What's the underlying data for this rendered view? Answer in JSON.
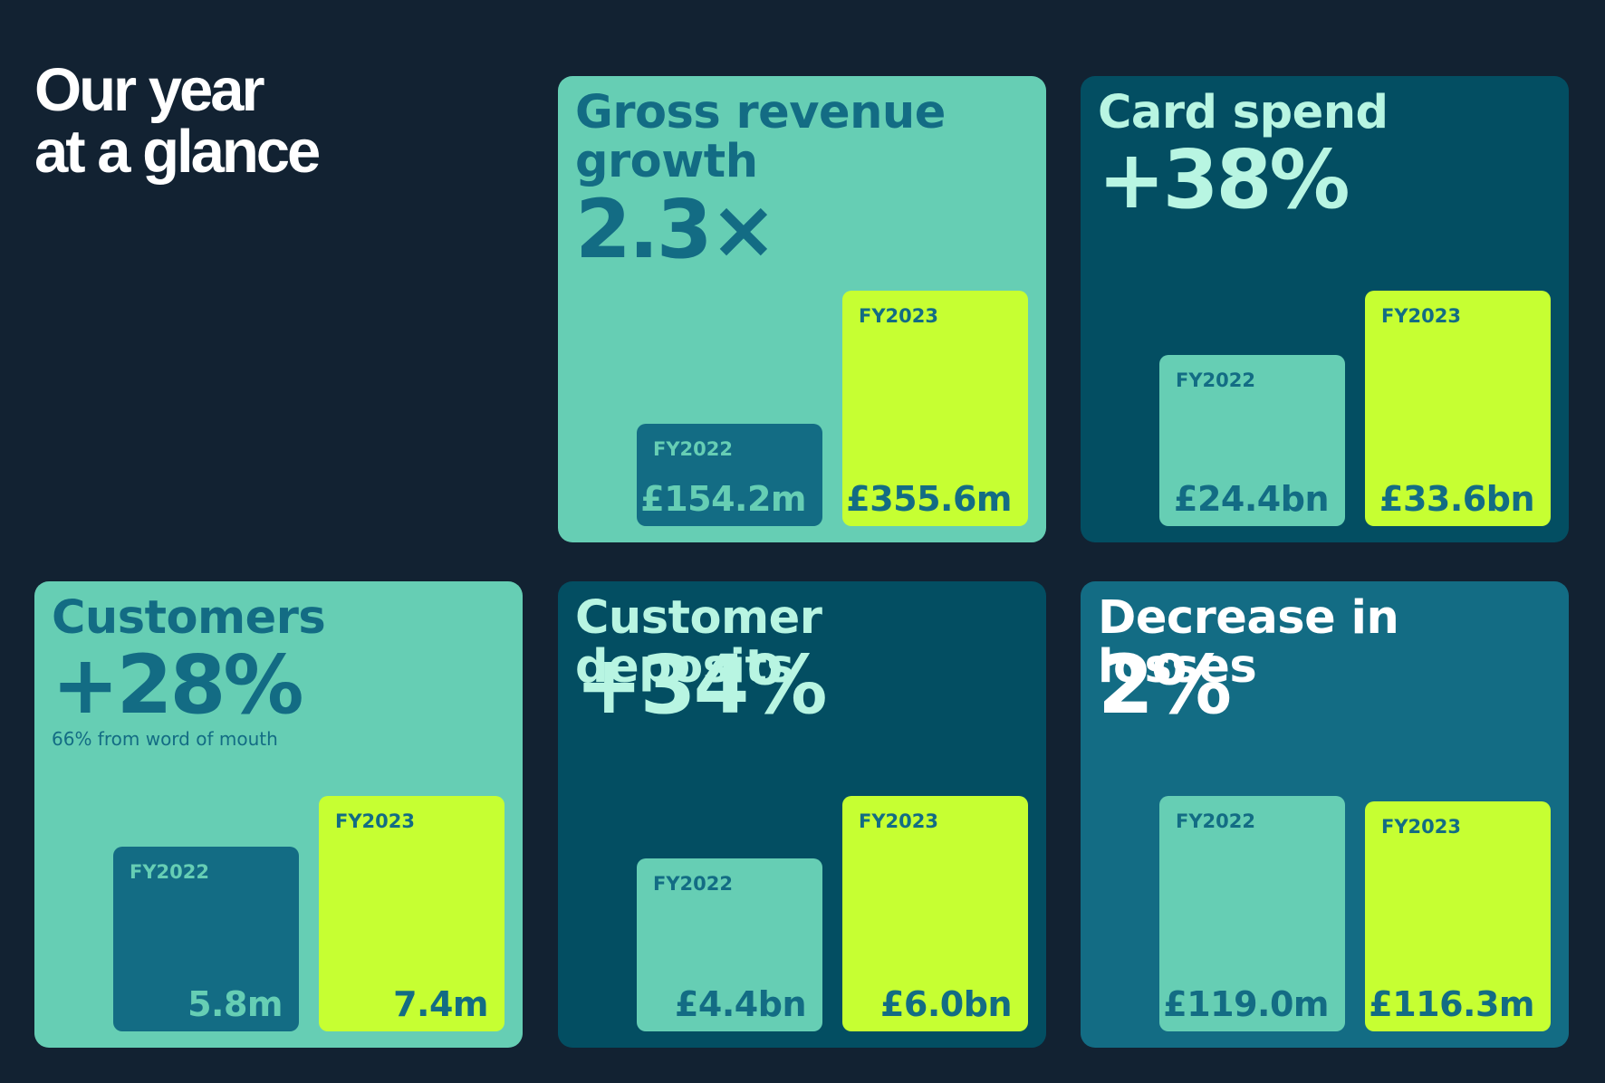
{
  "page": {
    "title_lines": [
      "Our year",
      "at a glance"
    ]
  },
  "colors": {
    "background": "#122232",
    "mint": "#66ceb4",
    "deep_teal": "#034e62",
    "mid_teal": "#136c84",
    "lime": "#c6ff32",
    "white": "#ffffff",
    "light_mint": "#b8f5e2",
    "dark_teal_text": "#1b6a80"
  },
  "chart_data": [
    {
      "type": "bar",
      "title": "Gross revenue growth",
      "headline": "2.3×",
      "note": "",
      "categories": [
        "FY2022",
        "FY2023"
      ],
      "values": [
        154.2,
        355.6
      ],
      "value_labels": [
        "£154.2m",
        "£355.6m"
      ],
      "unit": "£m",
      "card_color": "#66ceb4",
      "text_color": "#136c84",
      "bar_colors": [
        "#136c84",
        "#c6ff32"
      ],
      "bar_text_colors": [
        "#66ceb4",
        "#136c84"
      ]
    },
    {
      "type": "bar",
      "title": "Card spend",
      "headline": "+38%",
      "note": "",
      "categories": [
        "FY2022",
        "FY2023"
      ],
      "values": [
        24.4,
        33.6
      ],
      "value_labels": [
        "£24.4bn",
        "£33.6bn"
      ],
      "unit": "£bn",
      "card_color": "#034e62",
      "text_color": "#b8f5e2",
      "bar_colors": [
        "#66ceb4",
        "#c6ff32"
      ],
      "bar_text_colors": [
        "#136c84",
        "#136c84"
      ]
    },
    {
      "type": "bar",
      "title": "Customers",
      "headline": "+28%",
      "note": "66% from word of mouth",
      "categories": [
        "FY2022",
        "FY2023"
      ],
      "values": [
        5.8,
        7.4
      ],
      "value_labels": [
        "5.8m",
        "7.4m"
      ],
      "unit": "m",
      "card_color": "#66ceb4",
      "text_color": "#136c84",
      "bar_colors": [
        "#136c84",
        "#c6ff32"
      ],
      "bar_text_colors": [
        "#66ceb4",
        "#136c84"
      ]
    },
    {
      "type": "bar",
      "title": "Customer deposits",
      "headline": "+34%",
      "note": "",
      "categories": [
        "FY2022",
        "FY2023"
      ],
      "values": [
        4.4,
        6.0
      ],
      "value_labels": [
        "£4.4bn",
        "£6.0bn"
      ],
      "unit": "£bn",
      "card_color": "#034e62",
      "text_color": "#b8f5e2",
      "bar_colors": [
        "#66ceb4",
        "#c6ff32"
      ],
      "bar_text_colors": [
        "#136c84",
        "#136c84"
      ]
    },
    {
      "type": "bar",
      "title": "Decrease in losses",
      "headline": "2%",
      "note": "",
      "categories": [
        "FY2022",
        "FY2023"
      ],
      "values": [
        119.0,
        116.3
      ],
      "value_labels": [
        "£119.0m",
        "£116.3m"
      ],
      "unit": "£m",
      "card_color": "#136c84",
      "text_color": "#ffffff",
      "bar_colors": [
        "#66ceb4",
        "#c6ff32"
      ],
      "bar_text_colors": [
        "#136c84",
        "#136c84"
      ]
    }
  ]
}
